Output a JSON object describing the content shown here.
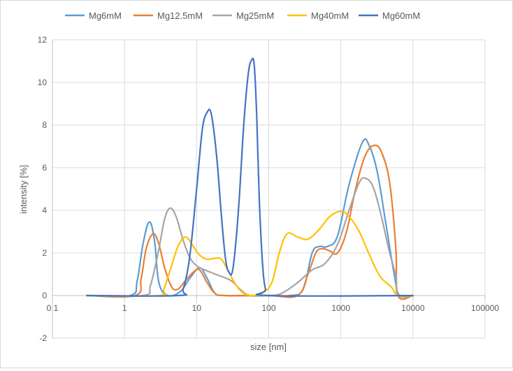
{
  "chart_data": {
    "type": "line",
    "title": "",
    "xlabel": "size [nm]",
    "ylabel": "intensity [%]",
    "x_scale": "log",
    "xlim": [
      0.1,
      100000
    ],
    "ylim": [
      -2,
      12
    ],
    "grid": true,
    "legend_position": "top",
    "x_tick_labels": [
      "0.1",
      "1",
      "10",
      "100",
      "1000",
      "10000",
      "100000"
    ],
    "y_tick_labels": [
      "-2",
      "0",
      "2",
      "4",
      "6",
      "8",
      "10",
      "12"
    ],
    "series": [
      {
        "name": "Mg6mM",
        "color": "#5b9bd5",
        "x": [
          0.3,
          1.2,
          1.5,
          1.8,
          2.2,
          2.6,
          3.0,
          4.0,
          6.0,
          8.0,
          11.0,
          14.0,
          18.0,
          25.0,
          40.0,
          100.0,
          200.0,
          300.0,
          400.0,
          500.0,
          650.0,
          900.0,
          1300.0,
          2000.0,
          2500.0,
          3200.0,
          4200.0,
          5500.0,
          6500.0,
          10000.0
        ],
        "y": [
          0,
          0,
          0.7,
          2.4,
          3.45,
          2.6,
          0.6,
          0,
          0.2,
          0.8,
          1.3,
          0.8,
          0.1,
          0,
          0,
          0,
          0,
          0.3,
          2.0,
          2.3,
          2.3,
          2.8,
          5.2,
          7.2,
          7.0,
          5.8,
          3.4,
          1.0,
          0,
          0
        ]
      },
      {
        "name": "Mg12.5mM",
        "color": "#ed7d31",
        "x": [
          0.3,
          1.4,
          1.7,
          2.0,
          2.5,
          3.0,
          3.6,
          4.5,
          5.5,
          7.0,
          9.0,
          11.0,
          14.0,
          18.0,
          25.0,
          100.0,
          250.0,
          350.0,
          450.0,
          550.0,
          700.0,
          900.0,
          1200.0,
          1600.0,
          2200.0,
          3000.0,
          3800.0,
          4800.0,
          5800.0,
          6200.0,
          10000.0
        ],
        "y": [
          0,
          0,
          0.8,
          2.2,
          2.9,
          2.4,
          1.3,
          0.4,
          0.3,
          0.7,
          1.1,
          1.2,
          0.6,
          0.1,
          0,
          0,
          0,
          1.0,
          2.0,
          2.2,
          2.1,
          2.0,
          3.0,
          5.0,
          6.6,
          7.05,
          6.6,
          5.2,
          2.2,
          0,
          0
        ]
      },
      {
        "name": "Mg25mM",
        "color": "#a5a5a5",
        "x": [
          0.3,
          1.8,
          2.3,
          3.0,
          3.6,
          4.3,
          5.2,
          6.5,
          8.0,
          10.0,
          13.0,
          20.0,
          30.0,
          40.0,
          55.0,
          100.0,
          150.0,
          250.0,
          400.0,
          600.0,
          900.0,
          1300.0,
          1800.0,
          2200.0,
          2800.0,
          3600.0,
          4600.0,
          5800.0,
          6200.0,
          10000.0
        ],
        "y": [
          0,
          0,
          0.5,
          2.2,
          3.6,
          4.1,
          3.7,
          2.6,
          1.8,
          1.4,
          1.2,
          0.95,
          0.7,
          0.3,
          0,
          0,
          0.1,
          0.6,
          1.2,
          1.5,
          2.4,
          4.0,
          5.3,
          5.5,
          5.1,
          3.8,
          2.2,
          0.9,
          0,
          0
        ]
      },
      {
        "name": "Mg40mM",
        "color": "#ffc000",
        "x": [
          0.3,
          3.0,
          3.5,
          4.5,
          5.5,
          7.0,
          9.0,
          11.0,
          14.0,
          18.0,
          22.0,
          28.0,
          35.0,
          45.0,
          60.0,
          80.0,
          110.0,
          140.0,
          180.0,
          250.0,
          350.0,
          500.0,
          700.0,
          1000.0,
          1300.0,
          1800.0,
          2500.0,
          3500.0,
          5000.0,
          6200.0,
          10000.0
        ],
        "y": [
          0,
          0,
          0.3,
          1.4,
          2.3,
          2.75,
          2.3,
          1.9,
          1.7,
          1.75,
          1.7,
          1.1,
          0.5,
          0.1,
          0,
          0.1,
          0.6,
          2.0,
          2.9,
          2.75,
          2.65,
          3.1,
          3.7,
          3.95,
          3.7,
          3.0,
          1.9,
          0.9,
          0.4,
          0,
          0
        ]
      },
      {
        "name": "Mg60mM",
        "color": "#4472c4",
        "x": [
          0.3,
          5.5,
          6.5,
          8.0,
          10.0,
          12.0,
          14.0,
          16.0,
          19.0,
          22.0,
          25.0,
          28.0,
          32.0,
          38.0,
          45.0,
          52.0,
          58.0,
          63.0,
          68.0,
          74.0,
          82.0,
          90.0,
          100.0,
          10000.0
        ],
        "y": [
          0,
          0,
          0.3,
          1.8,
          5.0,
          7.8,
          8.6,
          8.5,
          6.5,
          3.8,
          1.8,
          1.1,
          1.3,
          4.0,
          8.0,
          10.4,
          11.05,
          10.8,
          8.5,
          4.5,
          1.5,
          0.3,
          0,
          0
        ]
      }
    ]
  }
}
